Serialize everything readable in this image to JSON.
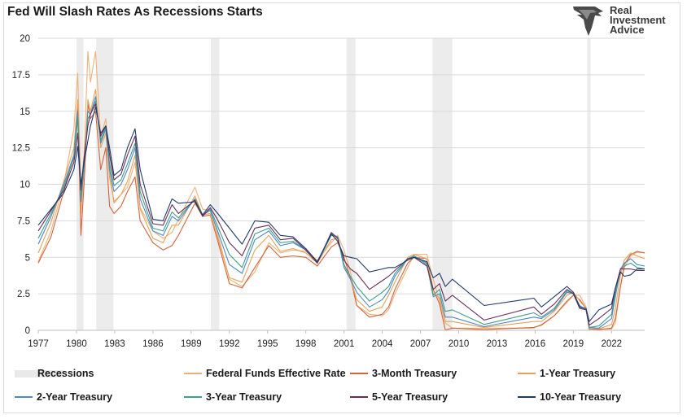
{
  "chart_data": {
    "type": "line",
    "title": "Fed Will Slash Rates As Recessions Starts",
    "xlabel": "",
    "ylabel": "",
    "xlim": [
      1977,
      2024.6
    ],
    "ylim": [
      0,
      20
    ],
    "grid": true,
    "y_ticks": [
      "0",
      "2.5",
      "5",
      "7.5",
      "10",
      "12.5",
      "15",
      "17.5",
      "20"
    ],
    "x_ticks": [
      "1977",
      "1980",
      "1983",
      "1986",
      "1989",
      "1992",
      "1995",
      "1998",
      "2001",
      "2004",
      "2007",
      "2010",
      "2013",
      "2016",
      "2019",
      "2022"
    ],
    "recessions_label": "Recessions",
    "recessions": [
      [
        1980.0,
        1980.55
      ],
      [
        1981.55,
        1982.9
      ],
      [
        1990.55,
        1991.2
      ],
      [
        2001.2,
        2001.9
      ],
      [
        2007.95,
        2009.5
      ],
      [
        2020.1,
        2020.35
      ]
    ],
    "series": [
      {
        "name": "Federal Funds Effective Rate",
        "color": "#e9b27a",
        "x": [
          1977.0,
          1978.0,
          1979.0,
          1979.8,
          1980.1,
          1980.35,
          1980.6,
          1980.9,
          1981.1,
          1981.5,
          1981.9,
          1982.3,
          1982.6,
          1982.95,
          1983.5,
          1984.0,
          1984.6,
          1985.0,
          1986.0,
          1986.8,
          1987.5,
          1988.0,
          1989.3,
          1989.9,
          1990.5,
          1991.0,
          1992.0,
          1993.0,
          1994.0,
          1995.1,
          1996.0,
          1997.0,
          1998.0,
          1998.9,
          2000.0,
          2000.5,
          2001.0,
          2001.5,
          2002.0,
          2003.0,
          2004.0,
          2004.5,
          2005.0,
          2006.0,
          2006.5,
          2007.5,
          2008.0,
          2008.5,
          2008.95,
          2009.5,
          2012.0,
          2015.9,
          2016.5,
          2017.5,
          2018.5,
          2019.0,
          2019.5,
          2020.0,
          2020.25,
          2021.0,
          2022.0,
          2022.3,
          2022.7,
          2023.0,
          2023.5,
          2024.0,
          2024.6
        ],
        "values": [
          4.7,
          6.8,
          10.0,
          13.8,
          17.6,
          9.5,
          12.0,
          19.1,
          17.0,
          19.1,
          13.2,
          14.5,
          11.0,
          8.7,
          9.3,
          9.8,
          11.5,
          8.4,
          6.8,
          6.3,
          6.7,
          7.6,
          9.8,
          8.3,
          8.2,
          6.9,
          3.5,
          3.0,
          4.0,
          6.0,
          5.3,
          5.5,
          5.4,
          4.8,
          6.0,
          6.5,
          5.5,
          4.0,
          1.7,
          1.1,
          1.0,
          1.4,
          2.5,
          4.3,
          5.2,
          5.2,
          3.5,
          2.0,
          0.5,
          0.15,
          0.15,
          0.15,
          0.4,
          1.0,
          1.9,
          2.4,
          2.4,
          1.6,
          0.07,
          0.08,
          0.08,
          0.5,
          3.0,
          4.3,
          5.1,
          5.33,
          5.33
        ]
      },
      {
        "name": "3-Month Treasury",
        "color": "#d2633c",
        "x": [
          1977.0,
          1978.0,
          1979.0,
          1979.8,
          1980.1,
          1980.35,
          1980.6,
          1980.9,
          1981.1,
          1981.5,
          1981.9,
          1982.3,
          1982.6,
          1982.95,
          1983.5,
          1984.0,
          1984.6,
          1985.0,
          1986.0,
          1986.8,
          1987.5,
          1988.0,
          1989.3,
          1989.9,
          1990.5,
          1991.0,
          1992.0,
          1993.0,
          1994.0,
          1995.1,
          1996.0,
          1997.0,
          1998.0,
          1998.9,
          2000.0,
          2000.5,
          2001.0,
          2001.5,
          2002.0,
          2003.0,
          2004.0,
          2004.5,
          2005.0,
          2006.0,
          2006.5,
          2007.5,
          2008.0,
          2008.5,
          2008.95,
          2009.5,
          2012.0,
          2015.9,
          2016.5,
          2017.5,
          2018.5,
          2019.0,
          2019.5,
          2020.0,
          2020.25,
          2021.0,
          2022.0,
          2022.3,
          2022.7,
          2023.0,
          2023.5,
          2024.0,
          2024.6
        ],
        "values": [
          4.6,
          6.4,
          9.5,
          12.0,
          15.5,
          6.5,
          10.0,
          15.5,
          14.5,
          15.0,
          11.0,
          12.5,
          8.5,
          8.0,
          8.5,
          9.5,
          10.5,
          7.5,
          6.0,
          5.5,
          5.8,
          6.5,
          8.7,
          7.8,
          7.9,
          6.4,
          3.2,
          2.9,
          4.3,
          5.8,
          5.0,
          5.1,
          5.0,
          4.4,
          5.7,
          6.0,
          5.0,
          3.6,
          1.7,
          0.9,
          1.1,
          1.6,
          2.8,
          4.6,
          5.0,
          4.9,
          2.8,
          1.8,
          0.03,
          0.15,
          0.05,
          0.2,
          0.35,
          1.0,
          2.0,
          2.4,
          2.1,
          1.5,
          0.1,
          0.05,
          0.15,
          0.8,
          3.0,
          4.5,
          5.2,
          5.4,
          5.3
        ]
      },
      {
        "name": "1-Year Treasury",
        "color": "#e8a154",
        "x": [
          1977.0,
          1978.0,
          1979.0,
          1979.8,
          1980.1,
          1980.35,
          1980.6,
          1980.9,
          1981.1,
          1981.5,
          1981.9,
          1982.3,
          1982.6,
          1982.95,
          1983.5,
          1984.0,
          1984.6,
          1985.0,
          1986.0,
          1986.8,
          1987.5,
          1988.0,
          1989.3,
          1989.9,
          1990.5,
          1991.0,
          1992.0,
          1993.0,
          1994.0,
          1995.1,
          1996.0,
          1997.0,
          1998.0,
          1998.9,
          2000.0,
          2000.5,
          2001.0,
          2001.5,
          2002.0,
          2003.0,
          2004.0,
          2004.5,
          2005.0,
          2006.0,
          2006.5,
          2007.5,
          2008.0,
          2008.5,
          2008.95,
          2009.5,
          2012.0,
          2015.9,
          2016.5,
          2017.5,
          2018.5,
          2019.0,
          2019.5,
          2020.0,
          2020.25,
          2021.0,
          2022.0,
          2022.3,
          2022.7,
          2023.0,
          2023.5,
          2024.0,
          2024.6
        ],
        "values": [
          5.3,
          7.4,
          10.2,
          12.5,
          15.8,
          8.0,
          11.0,
          15.8,
          15.0,
          16.5,
          12.5,
          13.5,
          10.5,
          8.8,
          9.3,
          10.2,
          12.0,
          8.3,
          6.3,
          6.0,
          7.2,
          7.2,
          9.2,
          7.9,
          8.0,
          6.6,
          3.6,
          3.3,
          5.5,
          6.5,
          5.4,
          5.6,
          5.3,
          4.6,
          6.2,
          6.3,
          4.5,
          3.5,
          2.1,
          1.3,
          1.6,
          2.4,
          3.3,
          5.0,
          5.2,
          4.9,
          2.5,
          2.2,
          0.6,
          0.6,
          0.2,
          0.6,
          0.6,
          1.3,
          2.4,
          2.6,
          2.0,
          1.5,
          0.2,
          0.1,
          0.4,
          1.5,
          3.8,
          4.8,
          5.3,
          5.1,
          4.9
        ]
      },
      {
        "name": "2-Year Treasury",
        "color": "#4f88c6",
        "x": [
          1977.0,
          1978.0,
          1979.0,
          1979.8,
          1980.1,
          1980.35,
          1980.6,
          1980.9,
          1981.1,
          1981.5,
          1981.9,
          1982.3,
          1982.6,
          1982.95,
          1983.5,
          1984.0,
          1984.6,
          1985.0,
          1986.0,
          1986.8,
          1987.5,
          1988.0,
          1989.3,
          1989.9,
          1990.5,
          1991.0,
          1992.0,
          1993.0,
          1994.0,
          1995.1,
          1996.0,
          1997.0,
          1998.0,
          1998.9,
          2000.0,
          2000.5,
          2001.0,
          2001.5,
          2002.0,
          2003.0,
          2004.0,
          2004.5,
          2005.0,
          2006.0,
          2006.5,
          2007.5,
          2008.0,
          2008.5,
          2008.95,
          2009.5,
          2012.0,
          2015.9,
          2016.5,
          2017.5,
          2018.5,
          2019.0,
          2019.5,
          2020.0,
          2020.25,
          2021.0,
          2022.0,
          2022.3,
          2022.7,
          2023.0,
          2023.5,
          2024.0,
          2024.6
        ],
        "values": [
          5.9,
          7.8,
          10.0,
          12.0,
          15.0,
          8.8,
          11.2,
          15.0,
          14.8,
          16.0,
          12.8,
          13.8,
          11.0,
          9.5,
          10.0,
          11.0,
          12.5,
          9.0,
          6.8,
          6.5,
          7.8,
          7.5,
          9.0,
          7.9,
          8.2,
          7.0,
          4.5,
          3.9,
          6.2,
          6.8,
          5.8,
          6.0,
          5.5,
          4.6,
          6.5,
          6.4,
          4.3,
          3.5,
          2.6,
          1.6,
          2.1,
          2.7,
          3.7,
          4.9,
          5.1,
          4.6,
          2.3,
          2.5,
          0.9,
          0.9,
          0.25,
          0.9,
          0.8,
          1.4,
          2.6,
          2.5,
          1.7,
          1.4,
          0.2,
          0.15,
          0.8,
          2.3,
          4.2,
          4.6,
          4.9,
          4.5,
          4.4
        ]
      },
      {
        "name": "3-Year Treasury",
        "color": "#3d9e8f",
        "x": [
          1977.0,
          1978.0,
          1979.0,
          1979.8,
          1980.1,
          1980.35,
          1980.6,
          1980.9,
          1981.1,
          1981.5,
          1981.9,
          1982.3,
          1982.6,
          1982.95,
          1983.5,
          1984.0,
          1984.6,
          1985.0,
          1986.0,
          1986.8,
          1987.5,
          1988.0,
          1989.3,
          1989.9,
          1990.5,
          1991.0,
          1992.0,
          1993.0,
          1994.0,
          1995.1,
          1996.0,
          1997.0,
          1998.0,
          1998.9,
          2000.0,
          2000.5,
          2001.0,
          2001.5,
          2002.0,
          2003.0,
          2004.0,
          2004.5,
          2005.0,
          2006.0,
          2006.5,
          2007.5,
          2008.0,
          2008.5,
          2008.95,
          2009.5,
          2012.0,
          2015.9,
          2016.5,
          2017.5,
          2018.5,
          2019.0,
          2019.5,
          2020.0,
          2020.25,
          2021.0,
          2022.0,
          2022.3,
          2022.7,
          2023.0,
          2023.5,
          2024.0,
          2024.6
        ],
        "values": [
          6.3,
          8.0,
          9.8,
          11.8,
          14.5,
          9.2,
          11.5,
          14.5,
          14.8,
          15.7,
          13.0,
          13.9,
          11.4,
          9.9,
          10.3,
          11.4,
          12.8,
          9.5,
          7.0,
          6.8,
          8.1,
          7.7,
          9.0,
          7.9,
          8.3,
          7.3,
          5.2,
          4.3,
          6.6,
          7.0,
          6.0,
          6.1,
          5.5,
          4.6,
          6.6,
          6.4,
          4.5,
          3.7,
          3.0,
          2.0,
          2.6,
          3.0,
          3.9,
          4.9,
          5.1,
          4.5,
          2.4,
          2.8,
          1.3,
          1.4,
          0.4,
          1.2,
          0.9,
          1.5,
          2.7,
          2.5,
          1.6,
          1.4,
          0.2,
          0.3,
          1.1,
          2.6,
          4.2,
          4.4,
          4.6,
          4.3,
          4.2
        ]
      },
      {
        "name": "5-Year Treasury",
        "color": "#6b2e5a",
        "x": [
          1977.0,
          1978.0,
          1979.0,
          1979.8,
          1980.1,
          1980.35,
          1980.6,
          1980.9,
          1981.1,
          1981.5,
          1981.9,
          1982.3,
          1982.6,
          1982.95,
          1983.5,
          1984.0,
          1984.6,
          1985.0,
          1986.0,
          1986.8,
          1987.5,
          1988.0,
          1989.3,
          1989.9,
          1990.5,
          1991.0,
          1992.0,
          1993.0,
          1994.0,
          1995.1,
          1996.0,
          1997.0,
          1998.0,
          1998.9,
          2000.0,
          2000.5,
          2001.0,
          2001.5,
          2002.0,
          2003.0,
          2004.0,
          2004.5,
          2005.0,
          2006.0,
          2006.5,
          2007.5,
          2008.0,
          2008.5,
          2008.95,
          2009.5,
          2012.0,
          2015.9,
          2016.5,
          2017.5,
          2018.5,
          2019.0,
          2019.5,
          2020.0,
          2020.25,
          2021.0,
          2022.0,
          2022.3,
          2022.7,
          2023.0,
          2023.5,
          2024.0,
          2024.6
        ],
        "values": [
          6.8,
          8.2,
          9.6,
          11.5,
          13.5,
          9.6,
          11.8,
          14.0,
          14.8,
          15.5,
          13.3,
          14.0,
          12.0,
          10.3,
          10.7,
          12.0,
          13.3,
          10.0,
          7.3,
          7.2,
          8.6,
          8.0,
          8.9,
          7.8,
          8.4,
          7.7,
          6.0,
          5.1,
          7.0,
          7.2,
          6.2,
          6.3,
          5.5,
          4.6,
          6.7,
          6.3,
          4.8,
          4.2,
          3.9,
          2.8,
          3.4,
          3.7,
          4.1,
          4.9,
          5.0,
          4.4,
          2.8,
          3.2,
          2.0,
          2.4,
          0.7,
          1.6,
          1.1,
          1.8,
          2.8,
          2.5,
          1.5,
          1.4,
          0.35,
          0.8,
          1.5,
          2.9,
          4.2,
          4.2,
          4.2,
          4.1,
          4.1
        ]
      },
      {
        "name": "10-Year Treasury",
        "color": "#1f3a68",
        "x": [
          1977.0,
          1978.0,
          1979.0,
          1979.8,
          1980.1,
          1980.35,
          1980.6,
          1980.9,
          1981.1,
          1981.5,
          1981.9,
          1982.3,
          1982.6,
          1982.95,
          1983.5,
          1984.0,
          1984.6,
          1985.0,
          1986.0,
          1986.8,
          1987.5,
          1988.0,
          1989.3,
          1989.9,
          1990.5,
          1991.0,
          1992.0,
          1993.0,
          1994.0,
          1995.1,
          1996.0,
          1997.0,
          1998.0,
          1998.9,
          2000.0,
          2000.5,
          2001.0,
          2001.5,
          2002.0,
          2003.0,
          2004.0,
          2004.5,
          2005.0,
          2006.0,
          2006.5,
          2007.5,
          2008.0,
          2008.5,
          2008.95,
          2009.5,
          2012.0,
          2015.9,
          2016.5,
          2017.5,
          2018.5,
          2019.0,
          2019.5,
          2020.0,
          2020.25,
          2021.0,
          2022.0,
          2022.3,
          2022.7,
          2023.0,
          2023.5,
          2024.0,
          2024.6
        ],
        "values": [
          7.2,
          8.3,
          9.4,
          11.0,
          12.6,
          10.0,
          11.5,
          13.0,
          14.0,
          15.3,
          13.5,
          14.0,
          12.5,
          10.6,
          11.0,
          12.5,
          13.8,
          11.0,
          7.6,
          7.5,
          9.0,
          8.7,
          8.8,
          7.9,
          8.6,
          8.1,
          7.0,
          5.9,
          7.5,
          7.4,
          6.5,
          6.4,
          5.6,
          4.7,
          6.6,
          6.1,
          5.1,
          5.0,
          4.9,
          4.0,
          4.2,
          4.3,
          4.3,
          4.8,
          5.0,
          4.7,
          3.6,
          3.9,
          3.0,
          3.5,
          1.7,
          2.2,
          1.6,
          2.3,
          3.0,
          2.6,
          1.6,
          1.5,
          0.6,
          1.4,
          1.8,
          2.9,
          4.0,
          3.7,
          3.8,
          4.2,
          4.2
        ]
      }
    ]
  },
  "logo": {
    "line1": "Real",
    "line2": "Investment",
    "line3": "Advice"
  }
}
